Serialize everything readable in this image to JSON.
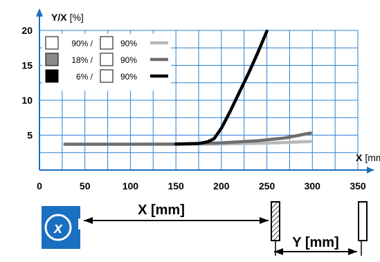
{
  "chart_data": {
    "type": "line",
    "ylabel": {
      "bold": "Y/X",
      "unit": "[%]"
    },
    "xlabel": {
      "bold": "X",
      "unit": "[mm]"
    },
    "xlim": [
      0,
      350
    ],
    "ylim": [
      0,
      20
    ],
    "x_ticks": [
      0,
      50,
      100,
      150,
      200,
      250,
      300,
      350
    ],
    "y_ticks": [
      5,
      10,
      15,
      20
    ],
    "x_grid_step": 25,
    "y_grid_step": 2.5,
    "grid": true,
    "legend_position": "top-left",
    "series": [
      {
        "name": "90% / 90%",
        "object_pct": "90% /",
        "background_pct": "90%",
        "swatch": "#ffffff",
        "color": "#b8b8b8",
        "points": [
          [
            28,
            3.7
          ],
          [
            100,
            3.7
          ],
          [
            150,
            3.7
          ],
          [
            200,
            3.75
          ],
          [
            250,
            3.85
          ],
          [
            280,
            4.0
          ],
          [
            298,
            4.1
          ]
        ]
      },
      {
        "name": "18% / 90%",
        "object_pct": "18% /",
        "background_pct": "90%",
        "swatch": "#8a8a8a",
        "color": "#6e6e6e",
        "points": [
          [
            28,
            3.7
          ],
          [
            100,
            3.7
          ],
          [
            150,
            3.72
          ],
          [
            200,
            3.9
          ],
          [
            240,
            4.2
          ],
          [
            270,
            4.6
          ],
          [
            298,
            5.3
          ]
        ]
      },
      {
        "name": "6% / 90%",
        "object_pct": "6% /",
        "background_pct": "90%",
        "swatch": "#000000",
        "color": "#000000",
        "points": [
          [
            150,
            3.72
          ],
          [
            175,
            3.8
          ],
          [
            185,
            4.05
          ],
          [
            192,
            4.5
          ],
          [
            200,
            6.0
          ],
          [
            210,
            8.5
          ],
          [
            220,
            11.2
          ],
          [
            230,
            13.9
          ],
          [
            240,
            16.8
          ],
          [
            250,
            19.9
          ]
        ]
      }
    ]
  },
  "diagram": {
    "x_label": "X [mm]",
    "y_label": "Y [mm]",
    "sensor_logo": "x",
    "sensor_color": "#1a6fc0"
  },
  "colors": {
    "grid": "#2a7fd0",
    "axis": "#1a6fc0"
  }
}
